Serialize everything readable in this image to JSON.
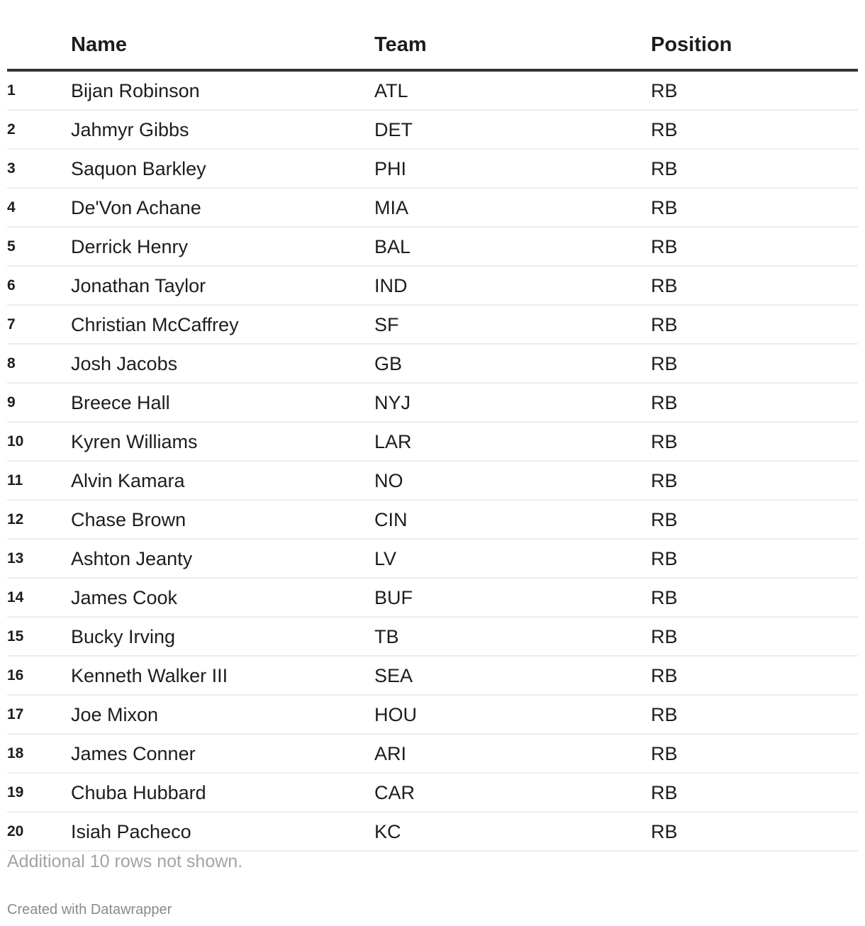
{
  "chart_data": {
    "type": "table",
    "columns": [
      "",
      "Name",
      "Team",
      "Position"
    ],
    "rows": [
      {
        "rank": "1",
        "name": "Bijan Robinson",
        "team": "ATL",
        "position": "RB"
      },
      {
        "rank": "2",
        "name": "Jahmyr Gibbs",
        "team": "DET",
        "position": "RB"
      },
      {
        "rank": "3",
        "name": "Saquon Barkley",
        "team": "PHI",
        "position": "RB"
      },
      {
        "rank": "4",
        "name": "De'Von Achane",
        "team": "MIA",
        "position": "RB"
      },
      {
        "rank": "5",
        "name": "Derrick Henry",
        "team": "BAL",
        "position": "RB"
      },
      {
        "rank": "6",
        "name": "Jonathan Taylor",
        "team": "IND",
        "position": "RB"
      },
      {
        "rank": "7",
        "name": "Christian McCaffrey",
        "team": "SF",
        "position": "RB"
      },
      {
        "rank": "8",
        "name": "Josh Jacobs",
        "team": "GB",
        "position": "RB"
      },
      {
        "rank": "9",
        "name": "Breece Hall",
        "team": "NYJ",
        "position": "RB"
      },
      {
        "rank": "10",
        "name": "Kyren Williams",
        "team": "LAR",
        "position": "RB"
      },
      {
        "rank": "11",
        "name": "Alvin Kamara",
        "team": "NO",
        "position": "RB"
      },
      {
        "rank": "12",
        "name": "Chase Brown",
        "team": "CIN",
        "position": "RB"
      },
      {
        "rank": "13",
        "name": "Ashton Jeanty",
        "team": "LV",
        "position": "RB"
      },
      {
        "rank": "14",
        "name": "James Cook",
        "team": "BUF",
        "position": "RB"
      },
      {
        "rank": "15",
        "name": "Bucky Irving",
        "team": "TB",
        "position": "RB"
      },
      {
        "rank": "16",
        "name": "Kenneth Walker III",
        "team": "SEA",
        "position": "RB"
      },
      {
        "rank": "17",
        "name": "Joe Mixon",
        "team": "HOU",
        "position": "RB"
      },
      {
        "rank": "18",
        "name": "James Conner",
        "team": "ARI",
        "position": "RB"
      },
      {
        "rank": "19",
        "name": "Chuba Hubbard",
        "team": "CAR",
        "position": "RB"
      },
      {
        "rank": "20",
        "name": "Isiah Pacheco",
        "team": "KC",
        "position": "RB"
      }
    ],
    "note": "Additional 10 rows not shown."
  },
  "footer": {
    "credit": "Created with Datawrapper"
  },
  "colors": {
    "text": "#1d1d1d",
    "header_rule": "#333333",
    "row_rule": "#ececec",
    "muted": "#a3a3a3"
  }
}
